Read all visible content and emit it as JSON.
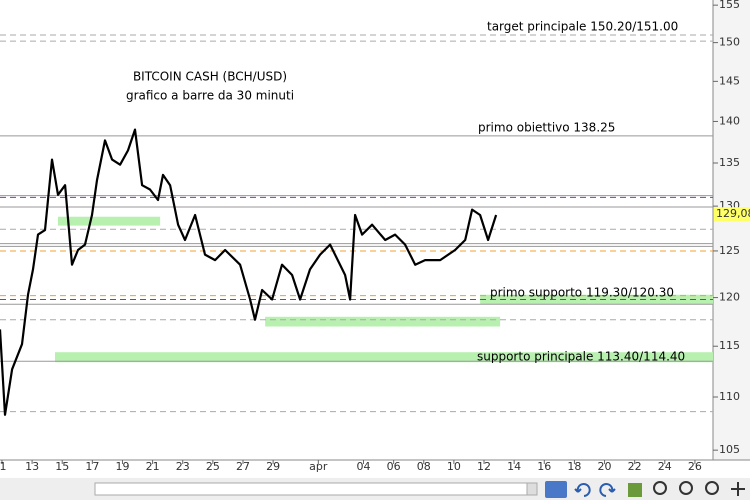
{
  "chart_data": {
    "type": "line",
    "title": "BITCOIN CASH (BCH/USD)",
    "subtitle": "grafico a barre da 30 minuti",
    "log_y": true,
    "xlim": [
      10.87,
      58.2
    ],
    "ylim": [
      104.1,
      155.7
    ],
    "yticks": [
      105,
      110,
      115,
      120,
      125,
      130,
      135,
      140,
      145,
      150,
      155
    ],
    "xticks": [
      {
        "value": 11,
        "label": "1"
      },
      {
        "value": 13,
        "label": "13"
      },
      {
        "value": 15,
        "label": "15"
      },
      {
        "value": 17,
        "label": "17"
      },
      {
        "value": 19,
        "label": "19"
      },
      {
        "value": 21,
        "label": "21"
      },
      {
        "value": 23,
        "label": "23"
      },
      {
        "value": 25,
        "label": "25"
      },
      {
        "value": 27,
        "label": "27"
      },
      {
        "value": 29,
        "label": "29"
      },
      {
        "value": 32,
        "label": "apr"
      },
      {
        "value": 35,
        "label": "04"
      },
      {
        "value": 37,
        "label": "06"
      },
      {
        "value": 39,
        "label": "08"
      },
      {
        "value": 41,
        "label": "10"
      },
      {
        "value": 43,
        "label": "12"
      },
      {
        "value": 45,
        "label": "14"
      },
      {
        "value": 47,
        "label": "16"
      },
      {
        "value": 49,
        "label": "18"
      },
      {
        "value": 51,
        "label": "20"
      },
      {
        "value": 53,
        "label": "22"
      },
      {
        "value": 55,
        "label": "24"
      },
      {
        "value": 57,
        "label": "26"
      }
    ],
    "series": [
      {
        "name": "BCH/USD",
        "color": "#000000",
        "x": [
          10.87,
          11.2,
          11.67,
          12.33,
          12.73,
          13.06,
          13.39,
          13.86,
          14.32,
          14.72,
          15.19,
          15.65,
          16.05,
          16.51,
          16.98,
          17.31,
          17.84,
          18.31,
          18.84,
          19.37,
          19.83,
          20.3,
          20.83,
          21.36,
          21.69,
          22.16,
          22.69,
          23.15,
          23.82,
          24.48,
          25.15,
          25.81,
          26.81,
          27.47,
          27.8,
          28.27,
          28.93,
          29.59,
          30.26,
          30.79,
          31.45,
          32.12,
          32.78,
          33.78,
          34.11,
          34.44,
          34.91,
          35.57,
          36.44,
          37.1,
          37.76,
          38.43,
          39.09,
          40.09,
          41.08,
          41.75,
          42.21,
          42.74,
          43.27,
          43.8
        ],
        "values": [
          116.7,
          108.3,
          112.7,
          115.2,
          120.3,
          123.0,
          126.8,
          127.3,
          135.4,
          131.3,
          132.4,
          123.5,
          125.1,
          125.7,
          129.0,
          133.0,
          137.7,
          135.4,
          134.8,
          136.5,
          139.0,
          132.4,
          131.9,
          130.7,
          133.6,
          132.4,
          127.9,
          126.2,
          129.0,
          124.6,
          124.0,
          125.1,
          123.5,
          119.8,
          117.7,
          120.8,
          119.8,
          123.5,
          122.4,
          119.8,
          123.0,
          124.6,
          125.7,
          122.4,
          119.8,
          129.0,
          126.8,
          127.9,
          126.2,
          126.8,
          125.7,
          123.5,
          124.0,
          124.0,
          125.1,
          126.2,
          129.6,
          129.0,
          126.2,
          129.0
        ]
      }
    ],
    "last_price": {
      "value": 129.08,
      "label": "129,08",
      "color": "#ffff66"
    },
    "levels": [
      {
        "value": 151.0,
        "color": "#aaaaaa",
        "dashed": true
      },
      {
        "value": 150.2,
        "color": "#aaaaaa",
        "dashed": true
      },
      {
        "value": 138.25,
        "color": "#999999",
        "dashed": false
      },
      {
        "value": 131.2,
        "color": "#999999",
        "dashed": false
      },
      {
        "value": 131.0,
        "color": "#7b3f9e",
        "dashed": true
      },
      {
        "value": 129.9,
        "color": "#999999",
        "dashed": false
      },
      {
        "value": 127.4,
        "color": "#aaaaaa",
        "dashed": true
      },
      {
        "value": 125.8,
        "color": "#999999",
        "dashed": false
      },
      {
        "value": 125.5,
        "color": "#999999",
        "dashed": false
      },
      {
        "value": 125.0,
        "color": "#f0a030",
        "dashed": true
      },
      {
        "value": 120.2,
        "color": "#f0a030",
        "dashed": true
      },
      {
        "value": 119.8,
        "color": "#7b3f9e",
        "dashed": true
      },
      {
        "value": 119.3,
        "color": "#999999",
        "dashed": false
      },
      {
        "value": 117.7,
        "color": "#aaaaaa",
        "dashed": true
      },
      {
        "value": 113.5,
        "color": "#999999",
        "dashed": false
      },
      {
        "value": 108.6,
        "color": "#aaaaaa",
        "dashed": true
      }
    ],
    "zones": [
      {
        "low": 127.8,
        "high": 128.8,
        "x": [
          14.72,
          21.5
        ]
      },
      {
        "low": 117.0,
        "high": 118.0,
        "x": [
          28.47,
          44.07
        ]
      },
      {
        "low": 119.3,
        "high": 120.3,
        "x": [
          42.74,
          58.2
        ]
      },
      {
        "low": 113.4,
        "high": 114.4,
        "x": [
          14.52,
          58.2
        ]
      }
    ],
    "zone_color": "#b8f0b0",
    "annotations": [
      "target principale 150.20/151.00",
      "primo obiettivo 138.25",
      "primo supporto 119.30/120.30",
      "supporto principale 113.40/114.40"
    ]
  }
}
